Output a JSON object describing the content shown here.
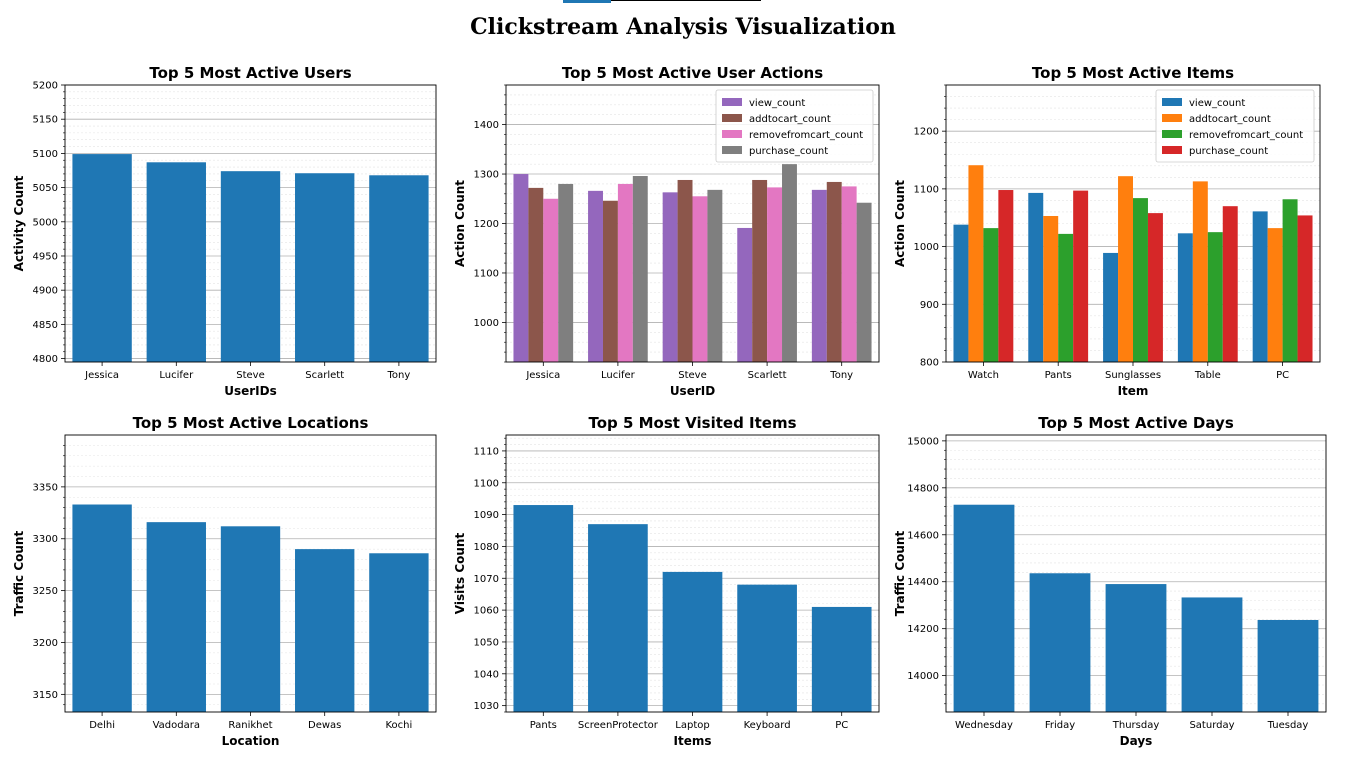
{
  "page": {
    "title": "Clickstream Analysis Visualization"
  },
  "chart_data": [
    {
      "type": "bar",
      "title": "Top 5 Most Active Users",
      "xlabel": "UserIDs",
      "ylabel": "Activity Count",
      "categories": [
        "Jessica",
        "Lucifer",
        "Steve",
        "Scarlett",
        "Tony"
      ],
      "values": [
        5099,
        5087,
        5074,
        5071,
        5068
      ],
      "ylim": [
        4795,
        5200
      ],
      "yticks": [
        4800,
        4850,
        4900,
        4950,
        5000,
        5050,
        5100,
        5150,
        5200
      ],
      "grid": true,
      "color": "#1f77b4"
    },
    {
      "type": "bar",
      "title": "Top 5 Most Active User Actions",
      "xlabel": "UserID",
      "ylabel": "Action Count",
      "categories": [
        "Jessica",
        "Lucifer",
        "Steve",
        "Scarlett",
        "Tony"
      ],
      "series": [
        {
          "name": "view_count",
          "values": [
            1300,
            1266,
            1263,
            1191,
            1268
          ],
          "color": "#9467bd"
        },
        {
          "name": "addtocart_count",
          "values": [
            1272,
            1246,
            1288,
            1288,
            1284
          ],
          "color": "#8c564b"
        },
        {
          "name": "removefromcart_count",
          "values": [
            1250,
            1280,
            1255,
            1273,
            1275
          ],
          "color": "#e377c2"
        },
        {
          "name": "purchase_count",
          "values": [
            1280,
            1296,
            1268,
            1320,
            1242
          ],
          "color": "#7f7f7f"
        }
      ],
      "ylim": [
        920,
        1480
      ],
      "yticks": [
        1000,
        1100,
        1200,
        1300,
        1400
      ],
      "legend": "top-right",
      "grid": true
    },
    {
      "type": "bar",
      "title": "Top 5 Most Active Items",
      "xlabel": "Item",
      "ylabel": "Action Count",
      "categories": [
        "Watch",
        "Pants",
        "Sunglasses",
        "Table",
        "PC"
      ],
      "series": [
        {
          "name": "view_count",
          "values": [
            1038,
            1093,
            989,
            1023,
            1061
          ],
          "color": "#1f77b4"
        },
        {
          "name": "addtocart_count",
          "values": [
            1141,
            1053,
            1122,
            1113,
            1032
          ],
          "color": "#ff7f0e"
        },
        {
          "name": "removefromcart_count",
          "values": [
            1032,
            1022,
            1084,
            1025,
            1082
          ],
          "color": "#2ca02c"
        },
        {
          "name": "purchase_count",
          "values": [
            1098,
            1097,
            1058,
            1070,
            1054
          ],
          "color": "#d62728"
        }
      ],
      "ylim": [
        800,
        1280
      ],
      "yticks": [
        800,
        900,
        1000,
        1100,
        1200
      ],
      "legend": "top-right",
      "grid": true
    },
    {
      "type": "bar",
      "title": "Top 5 Most Active Locations",
      "xlabel": "Location",
      "ylabel": "Traffic Count",
      "categories": [
        "Delhi",
        "Vadodara",
        "Ranikhet",
        "Dewas",
        "Kochi"
      ],
      "values": [
        3333,
        3316,
        3312,
        3290,
        3286
      ],
      "ylim": [
        3133,
        3400
      ],
      "yticks": [
        3150,
        3200,
        3250,
        3300,
        3350
      ],
      "grid": true,
      "color": "#1f77b4"
    },
    {
      "type": "bar",
      "title": "Top 5 Most Visited Items",
      "xlabel": "Items",
      "ylabel": "Visits Count",
      "categories": [
        "Pants",
        "ScreenProtector",
        "Laptop",
        "Keyboard",
        "PC"
      ],
      "values": [
        1093,
        1087,
        1072,
        1068,
        1061
      ],
      "ylim": [
        1028,
        1115
      ],
      "yticks": [
        1030,
        1040,
        1050,
        1060,
        1070,
        1080,
        1090,
        1100,
        1110
      ],
      "grid": true,
      "color": "#1f77b4"
    },
    {
      "type": "bar",
      "title": "Top 5 Most Active Days",
      "xlabel": "Days",
      "ylabel": "Traffic Count",
      "categories": [
        "Wednesday",
        "Friday",
        "Thursday",
        "Saturday",
        "Tuesday"
      ],
      "values": [
        14728,
        14436,
        14390,
        14333,
        14237
      ],
      "ylim": [
        13845,
        15025
      ],
      "yticks": [
        14000,
        14200,
        14400,
        14600,
        14800,
        15000
      ],
      "grid": true,
      "color": "#1f77b4"
    }
  ]
}
